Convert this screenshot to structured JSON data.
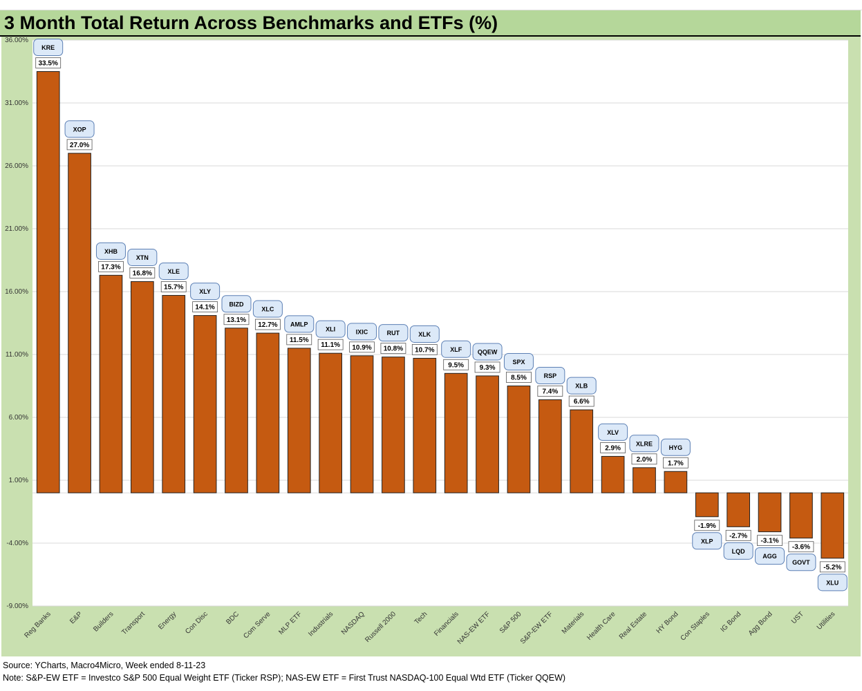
{
  "title": "3 Month Total Return Across Benchmarks and ETFs (%)",
  "footer": {
    "source": "Source: YCharts, Macro4Micro, Week ended 8-11-23",
    "note": "Note: S&P-EW ETF = Investco S&P 500 Equal Weight ETF (Ticker RSP); NAS-EW ETF = First Trust NASDAQ-100 Equal Wtd ETF (Ticker QQEW)"
  },
  "colors": {
    "bar": "#c55a11",
    "background": "#c9e0b0",
    "title_bar": "#b5d79a",
    "ticker_fill": "#dce9f8",
    "ticker_stroke": "#5b7fb4"
  },
  "chart_data": {
    "type": "bar",
    "categories": [
      "Reg Banks",
      "E&P",
      "Builders",
      "Transport",
      "Energy",
      "Con Disc",
      "BDC",
      "Com Serve",
      "MLP ETF",
      "Industrials",
      "NASDAQ",
      "Russell 2000",
      "Tech",
      "Financials",
      "NAS-EW ETF",
      "S&P 500",
      "S&P-EW ETF",
      "Materials",
      "Health Care",
      "Real Estate",
      "HY Bond",
      "Con Staples",
      "IG Bond",
      "Agg Bond",
      "UST",
      "Utilities"
    ],
    "values": [
      33.5,
      27.0,
      17.3,
      16.8,
      15.7,
      14.1,
      13.1,
      12.7,
      11.5,
      11.1,
      10.9,
      10.8,
      10.7,
      9.5,
      9.3,
      8.5,
      7.4,
      6.6,
      2.9,
      2.0,
      1.7,
      -1.9,
      -2.7,
      -3.1,
      -3.6,
      -5.2
    ],
    "value_labels": [
      "33.5%",
      "27.0%",
      "17.3%",
      "16.8%",
      "15.7%",
      "14.1%",
      "13.1%",
      "12.7%",
      "11.5%",
      "11.1%",
      "10.9%",
      "10.8%",
      "10.7%",
      "9.5%",
      "9.3%",
      "8.5%",
      "7.4%",
      "6.6%",
      "2.9%",
      "2.0%",
      "1.7%",
      "-1.9%",
      "-2.7%",
      "-3.1%",
      "-3.6%",
      "-5.2%"
    ],
    "tickers": [
      "KRE",
      "XOP",
      "XHB",
      "XTN",
      "XLE",
      "XLY",
      "BIZD",
      "XLC",
      "AMLP",
      "XLI",
      "IXIC",
      "RUT",
      "XLK",
      "XLF",
      "QQEW",
      "SPX",
      "RSP",
      "XLB",
      "XLV",
      "XLRE",
      "HYG",
      "XLP",
      "LQD",
      "AGG",
      "GOVT",
      "XLU"
    ],
    "yticks": [
      36.0,
      31.0,
      26.0,
      21.0,
      16.0,
      11.0,
      6.0,
      1.0,
      -4.0,
      -9.0
    ],
    "ytick_labels": [
      "36.00%",
      "31.00%",
      "26.00%",
      "21.00%",
      "16.00%",
      "11.00%",
      "6.00%",
      "1.00%",
      "-4.00%",
      "-9.00%"
    ],
    "ylim": [
      -9.0,
      36.0
    ],
    "grid": true,
    "legend": "none"
  }
}
